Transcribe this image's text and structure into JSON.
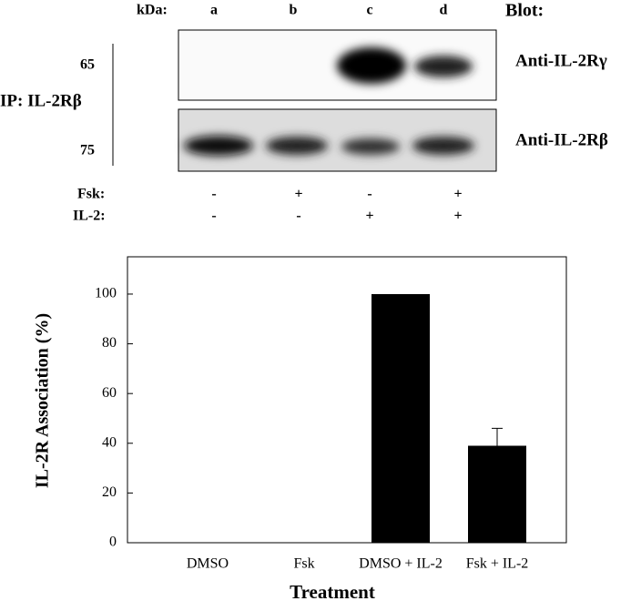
{
  "blot": {
    "kda_label": "kDa:",
    "lanes": [
      "a",
      "b",
      "c",
      "d"
    ],
    "blot_label": "Blot:",
    "markers": [
      "65",
      "75"
    ],
    "antibodies": [
      "Anti-IL-2Rγ",
      "Anti-IL-2Rβ"
    ],
    "ip_label": "IP: IL-2Rβ",
    "treatments": [
      {
        "name": "Fsk:",
        "signs": [
          "-",
          "+",
          "-",
          "+"
        ]
      },
      {
        "name": "IL-2:",
        "signs": [
          "-",
          "-",
          "+",
          "+"
        ]
      }
    ]
  },
  "chart_data": {
    "type": "bar",
    "y_label": "IL-2R Association (%)",
    "x_label": "Treatment",
    "categories": [
      "DMSO",
      "Fsk",
      "DMSO + IL-2",
      "Fsk + IL-2"
    ],
    "values": [
      0,
      0,
      100,
      39
    ],
    "errors": [
      null,
      null,
      null,
      7
    ],
    "color": "#000000",
    "ylim": [
      0,
      115
    ],
    "yticks": [
      0,
      20,
      40,
      60,
      80,
      100
    ]
  }
}
